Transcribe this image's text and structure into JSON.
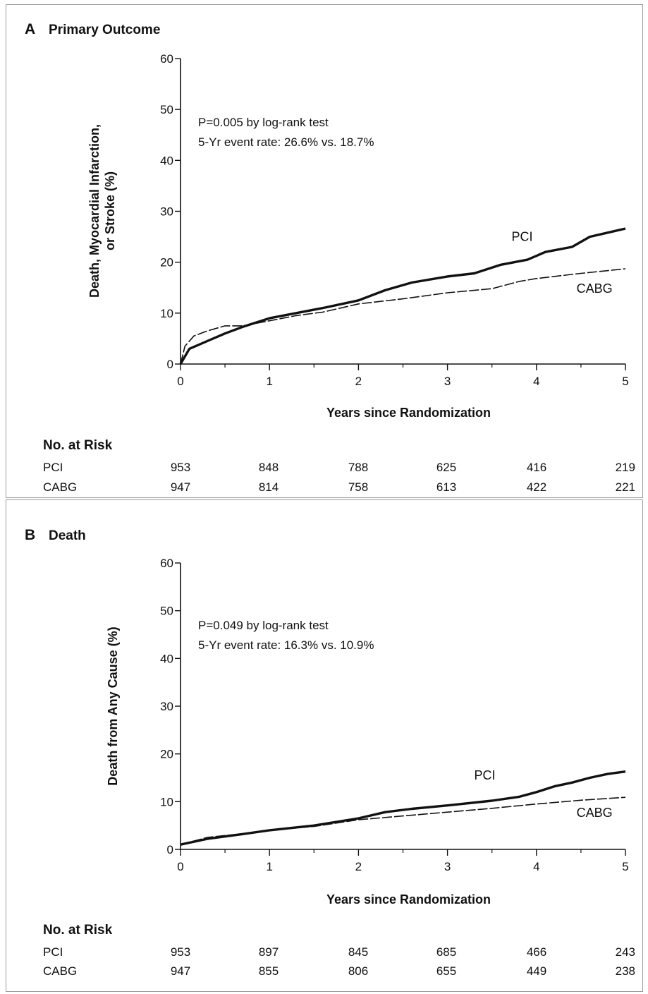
{
  "chart_data": [
    {
      "type": "line",
      "panel_letter": "A",
      "title": "Primary Outcome",
      "xlabel": "Years since Randomization",
      "ylabel": [
        "Death, Myocardial Infarction,",
        "or Stroke (%)"
      ],
      "xlim": [
        0,
        5
      ],
      "ylim": [
        0,
        60
      ],
      "x_ticks": [
        0,
        1,
        2,
        3,
        4,
        5
      ],
      "y_ticks": [
        0,
        10,
        20,
        30,
        40,
        50,
        60
      ],
      "grid": false,
      "annotations": [
        "P=0.005 by log-rank test",
        "5-Yr event rate: 26.6% vs. 18.7%"
      ],
      "series": [
        {
          "name": "PCI",
          "style": "solid-thick",
          "x": [
            0,
            0.1,
            0.3,
            0.5,
            0.7,
            1.0,
            1.3,
            1.6,
            2.0,
            2.3,
            2.6,
            3.0,
            3.3,
            3.6,
            3.9,
            4.1,
            4.4,
            4.6,
            4.8,
            5.0
          ],
          "y": [
            0,
            3.0,
            4.5,
            6.0,
            7.3,
            9.0,
            10.0,
            11.0,
            12.5,
            14.5,
            16.0,
            17.2,
            17.8,
            19.5,
            20.5,
            22.0,
            23.0,
            25.0,
            25.8,
            26.6
          ]
        },
        {
          "name": "CABG",
          "style": "dashed",
          "x": [
            0,
            0.05,
            0.15,
            0.3,
            0.5,
            0.7,
            1.0,
            1.3,
            1.6,
            2.0,
            2.5,
            3.0,
            3.5,
            3.8,
            4.0,
            4.5,
            5.0
          ],
          "y": [
            0,
            3.5,
            5.5,
            6.5,
            7.5,
            7.5,
            8.5,
            9.5,
            10.2,
            11.8,
            12.8,
            14.0,
            14.8,
            16.2,
            16.8,
            17.8,
            18.7
          ]
        }
      ],
      "series_label_positions": [
        {
          "x": 3.72,
          "y": 24.2
        },
        {
          "x": 4.45,
          "y": 14.0
        }
      ],
      "risk_table": {
        "header": "No. at Risk",
        "rows": [
          {
            "label": "PCI",
            "values": [
              "953",
              "848",
              "788",
              "625",
              "416",
              "219"
            ]
          },
          {
            "label": "CABG",
            "values": [
              "947",
              "814",
              "758",
              "613",
              "422",
              "221"
            ]
          }
        ]
      }
    },
    {
      "type": "line",
      "panel_letter": "B",
      "title": "Death",
      "xlabel": "Years since Randomization",
      "ylabel": [
        "Death from Any Cause (%)"
      ],
      "xlim": [
        0,
        5
      ],
      "ylim": [
        0,
        60
      ],
      "x_ticks": [
        0,
        1,
        2,
        3,
        4,
        5
      ],
      "y_ticks": [
        0,
        10,
        20,
        30,
        40,
        50,
        60
      ],
      "grid": false,
      "annotations": [
        "P=0.049 by log-rank test",
        "5-Yr event rate: 16.3% vs. 10.9%"
      ],
      "series": [
        {
          "name": "PCI",
          "style": "solid-thick",
          "x": [
            0,
            0.3,
            0.7,
            1.0,
            1.5,
            2.0,
            2.3,
            2.6,
            3.0,
            3.5,
            3.8,
            4.0,
            4.2,
            4.4,
            4.6,
            4.8,
            5.0
          ],
          "y": [
            1.0,
            2.2,
            3.2,
            4.0,
            5.0,
            6.5,
            7.8,
            8.5,
            9.2,
            10.2,
            11.0,
            12.0,
            13.2,
            14.0,
            15.0,
            15.8,
            16.3
          ]
        },
        {
          "name": "CABG",
          "style": "dashed",
          "x": [
            0,
            0.3,
            0.7,
            1.0,
            1.5,
            2.0,
            2.5,
            3.0,
            3.5,
            4.0,
            4.5,
            5.0
          ],
          "y": [
            1.0,
            2.5,
            3.3,
            4.0,
            4.8,
            6.2,
            7.0,
            7.8,
            8.6,
            9.5,
            10.3,
            10.9
          ]
        }
      ],
      "series_label_positions": [
        {
          "x": 3.3,
          "y": 14.6
        },
        {
          "x": 4.45,
          "y": 6.8
        }
      ],
      "risk_table": {
        "header": "No. at Risk",
        "rows": [
          {
            "label": "PCI",
            "values": [
              "953",
              "897",
              "845",
              "685",
              "466",
              "243"
            ]
          },
          {
            "label": "CABG",
            "values": [
              "947",
              "855",
              "806",
              "655",
              "449",
              "238"
            ]
          }
        ]
      }
    }
  ]
}
